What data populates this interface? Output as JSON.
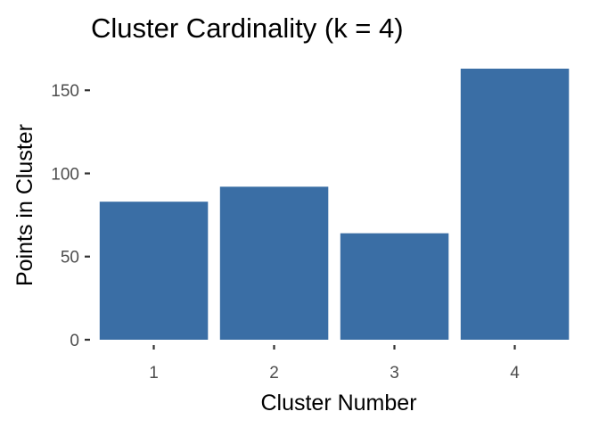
{
  "chart_data": {
    "type": "bar",
    "title": "Cluster Cardinality (k = 4)",
    "xlabel": "Cluster Number",
    "ylabel": "Points in Cluster",
    "categories": [
      "1",
      "2",
      "3",
      "4"
    ],
    "values": [
      83,
      92,
      64,
      163
    ],
    "yticks": [
      0,
      50,
      100,
      150
    ],
    "ytick_labels": [
      "0",
      "50",
      "100",
      "150"
    ],
    "ylim": [
      0,
      163
    ],
    "grid": false,
    "bar_color": "#3a6ea5"
  }
}
